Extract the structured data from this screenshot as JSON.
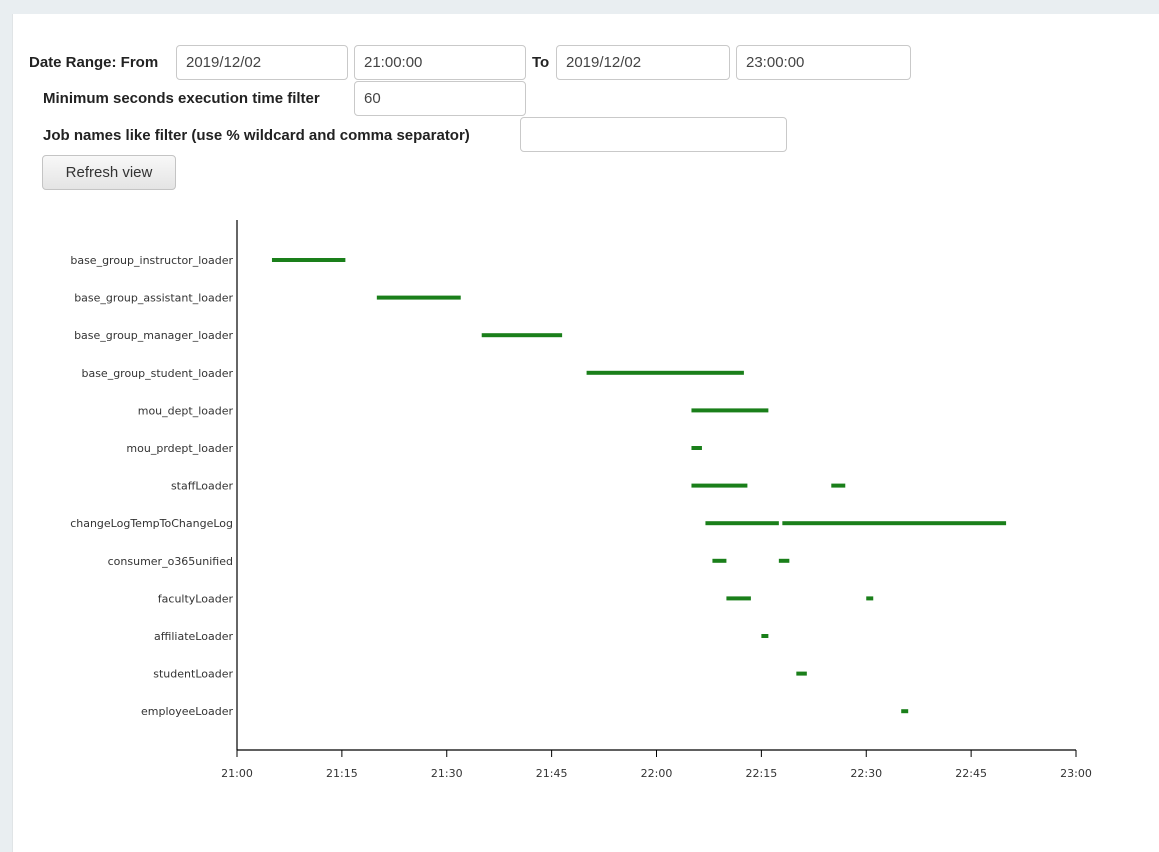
{
  "form": {
    "date_range_label": "Date Range: From",
    "from_date": "2019/12/02",
    "from_time": "21:00:00",
    "to_label": "To",
    "to_date": "2019/12/02",
    "to_time": "23:00:00",
    "min_seconds_label": "Minimum seconds execution time filter",
    "min_seconds_value": "60",
    "job_names_label": "Job names like filter (use % wildcard and comma separator)",
    "job_names_value": "",
    "refresh_label": "Refresh view"
  },
  "colors": {
    "bar": "#1a7f1a",
    "axis": "#000000",
    "background": "#e9eef1"
  },
  "chart_data": {
    "type": "gantt",
    "title": "",
    "xlabel": "",
    "ylabel": "",
    "x_ticks": [
      "21:00",
      "21:15",
      "21:30",
      "21:45",
      "22:00",
      "22:15",
      "22:30",
      "22:45",
      "23:00"
    ],
    "xlim": [
      "21:00",
      "23:00"
    ],
    "categories": [
      "base_group_instructor_loader",
      "base_group_assistant_loader",
      "base_group_manager_loader",
      "base_group_student_loader",
      "mou_dept_loader",
      "mou_prdept_loader",
      "staffLoader",
      "changeLogTempToChangeLog",
      "consumer_o365unified",
      "facultyLoader",
      "affiliateLoader",
      "studentLoader",
      "employeeLoader"
    ],
    "tasks": [
      {
        "job": "base_group_instructor_loader",
        "start": "21:05",
        "end": "21:15.5"
      },
      {
        "job": "base_group_assistant_loader",
        "start": "21:20",
        "end": "21:32"
      },
      {
        "job": "base_group_manager_loader",
        "start": "21:35",
        "end": "21:46.5"
      },
      {
        "job": "base_group_student_loader",
        "start": "21:50",
        "end": "22:12.5"
      },
      {
        "job": "mou_dept_loader",
        "start": "22:05",
        "end": "22:16"
      },
      {
        "job": "mou_prdept_loader",
        "start": "22:05",
        "end": "22:06.5"
      },
      {
        "job": "staffLoader",
        "start": "22:05",
        "end": "22:13"
      },
      {
        "job": "staffLoader",
        "start": "22:25",
        "end": "22:27"
      },
      {
        "job": "changeLogTempToChangeLog",
        "start": "22:07",
        "end": "22:17.5"
      },
      {
        "job": "changeLogTempToChangeLog",
        "start": "22:18",
        "end": "22:50"
      },
      {
        "job": "consumer_o365unified",
        "start": "22:08",
        "end": "22:10"
      },
      {
        "job": "consumer_o365unified",
        "start": "22:17.5",
        "end": "22:19"
      },
      {
        "job": "facultyLoader",
        "start": "22:10",
        "end": "22:13.5"
      },
      {
        "job": "facultyLoader",
        "start": "22:30",
        "end": "22:31"
      },
      {
        "job": "affiliateLoader",
        "start": "22:15",
        "end": "22:16"
      },
      {
        "job": "studentLoader",
        "start": "22:20",
        "end": "22:21.5"
      },
      {
        "job": "employeeLoader",
        "start": "22:35",
        "end": "22:36"
      }
    ]
  }
}
